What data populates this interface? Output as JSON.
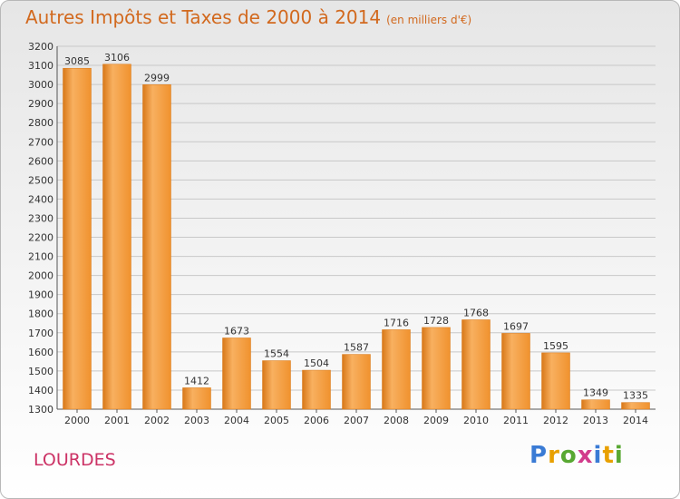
{
  "header": {
    "title": "Autres Impôts et Taxes de 2000 à 2014",
    "subtitle": "(en milliers d'€)"
  },
  "footer": {
    "place": "LOURDES",
    "logo": [
      "P",
      "r",
      "o",
      "x",
      "i",
      "t",
      "i"
    ]
  },
  "colors": {
    "bar": "#f0922e",
    "bar_light": "#f8b060",
    "bar_dark": "#d87818",
    "title": "#d2691e",
    "place": "#cc3366",
    "grid": "#c8c8c8"
  },
  "chart_data": {
    "type": "bar",
    "title": "Autres Impôts et Taxes de 2000 à 2014",
    "subtitle": "(en milliers d'€)",
    "xlabel": "",
    "ylabel": "",
    "categories": [
      "2000",
      "2001",
      "2002",
      "2003",
      "2004",
      "2005",
      "2006",
      "2007",
      "2008",
      "2009",
      "2010",
      "2011",
      "2012",
      "2013",
      "2014"
    ],
    "values": [
      3085,
      3106,
      2999,
      1412,
      1673,
      1554,
      1504,
      1587,
      1716,
      1728,
      1768,
      1697,
      1595,
      1349,
      1335
    ],
    "data_labels": [
      "3085",
      "3106",
      "2999",
      "1412",
      "1673",
      "1554",
      "1504",
      "1587",
      "1716",
      "1728",
      "1768",
      "1697",
      "1595",
      "1349",
      "1335"
    ],
    "ylim": [
      1300,
      3200
    ],
    "yticks": [
      "1300",
      "1400",
      "1500",
      "1600",
      "1700",
      "1800",
      "1900",
      "2000",
      "2100",
      "2200",
      "2300",
      "2400",
      "2500",
      "2600",
      "2700",
      "2800",
      "2900",
      "3000",
      "3100",
      "3200"
    ],
    "grid": true,
    "legend": "none"
  }
}
